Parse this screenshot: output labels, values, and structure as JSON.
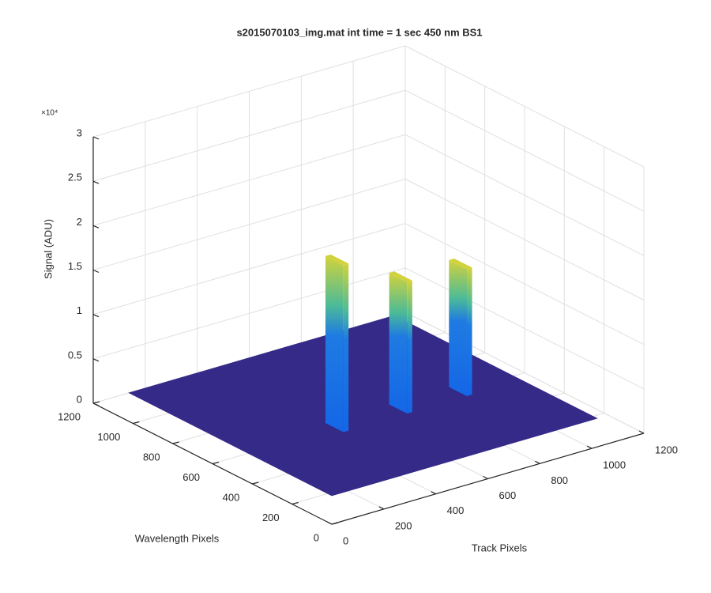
{
  "chart_data": {
    "type": "surface3d",
    "title": "s2015070103_img.mat int time = 1 sec  450 nm BS1",
    "xlabel": "Track Pixels",
    "ylabel": "Wavelength Pixels",
    "zlabel": "Signal (ADU)",
    "zmultiplier": "×10⁴",
    "xlim": [
      0,
      1200
    ],
    "xticks": [
      0,
      200,
      400,
      600,
      800,
      1000,
      1200
    ],
    "ylim": [
      0,
      1200
    ],
    "yticks": [
      0,
      200,
      400,
      600,
      800,
      1000,
      1200
    ],
    "zlim": [
      0,
      30000
    ],
    "zticks": [
      0,
      {
        "value": 5000,
        "label": "0.5"
      },
      {
        "value": 10000,
        "label": "1"
      },
      {
        "value": 15000,
        "label": "1.5"
      },
      {
        "value": 20000,
        "label": "2"
      },
      {
        "value": 25000,
        "label": "2.5"
      },
      {
        "value": 30000,
        "label": "3"
      }
    ],
    "grid": true,
    "floor": {
      "z": 3200,
      "track": [
        1,
        1020
      ],
      "wavelength": [
        1,
        1020
      ],
      "color": "#352a87"
    },
    "peak_colors": [
      "#d2d23c",
      "#4cbb97",
      "#1f7be2",
      "#1466e6"
    ],
    "peaks": [
      {
        "track": [
          335,
          355
        ],
        "wavelength": [
          380,
          470
        ],
        "z": 22000
      },
      {
        "track": [
          580,
          600
        ],
        "wavelength": [
          380,
          470
        ],
        "z": 18000
      },
      {
        "track": [
          810,
          830
        ],
        "wavelength": [
          380,
          470
        ],
        "z": 17500
      }
    ]
  }
}
